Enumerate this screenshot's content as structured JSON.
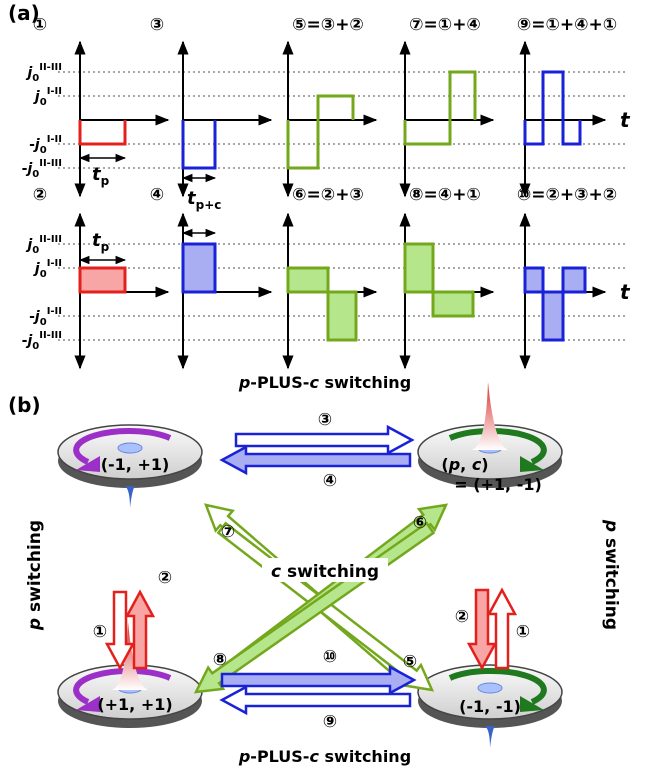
{
  "panel_a": {
    "label": "(a)",
    "t_label": "t",
    "tp": [
      "t",
      "p"
    ],
    "tpc": [
      "t",
      "p+c"
    ],
    "levels": [
      {
        "base": "j",
        "sub": "0",
        "sup": "II-III"
      },
      {
        "base": "j",
        "sub": "0",
        "sup": "I-II"
      },
      {
        "sign": "-",
        "base": "j",
        "sub": "0",
        "sup": "I-II"
      },
      {
        "sign": "-",
        "base": "j",
        "sub": "0",
        "sup": "II-III"
      }
    ],
    "panels": [
      "①",
      "③",
      "⑤=③+②",
      "⑦=①+④",
      "⑨=①+④+①",
      "②",
      "④",
      "⑥=②+③",
      "⑧=④+①",
      "⑩=②+③+②"
    ]
  },
  "panel_b": {
    "label": "(b)",
    "pc_title": [
      "p",
      "-PLUS-",
      "c",
      " switching"
    ],
    "c_switching": [
      "c",
      " switching"
    ],
    "p_switching": [
      "p",
      " switching"
    ],
    "states": {
      "tl": "(-1, +1)",
      "bl": "(+1, +1)",
      "br": "(-1, -1)",
      "tr_key": [
        "(",
        "p",
        ", ",
        "c",
        ")"
      ],
      "tr": "= (+1, -1)"
    },
    "arrow_labels": [
      "③",
      "④",
      "⑦",
      "⑤",
      "⑥",
      "⑧",
      "①",
      "②",
      "②",
      "①",
      "⑩",
      "⑨"
    ]
  }
}
